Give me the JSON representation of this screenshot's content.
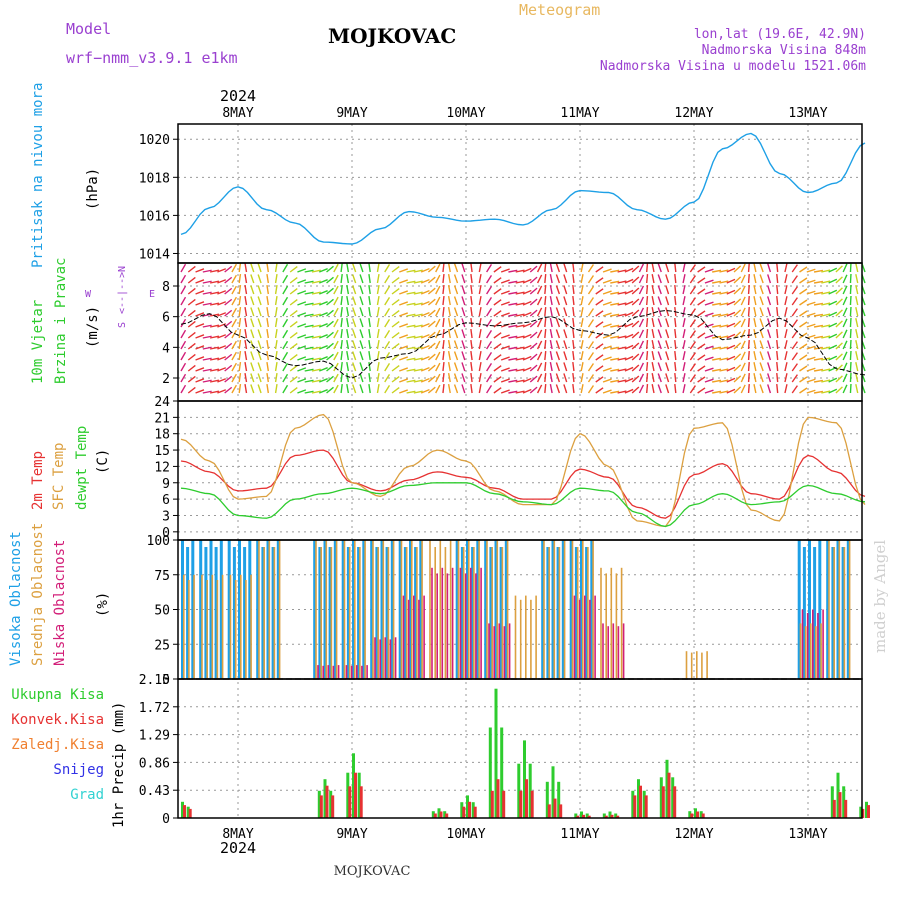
{
  "header": {
    "model_label": "Model",
    "model_value": "wrf−nmm_v3.9.1  e1km",
    "station": "MOJKOVAC",
    "product": "Meteogram",
    "coords": "lon,lat (19.6E, 42.9N)",
    "elevation": "Nadmorska Visina 848m",
    "model_elevation": "Nadmorska Visina u modelu 1521.06m"
  },
  "footer": {
    "station": "MOJKOVAC",
    "credit": "made by Angel"
  },
  "colors": {
    "pressure": "#1ea0e6",
    "t2m": "#e63232",
    "tsfc": "#dca040",
    "tdew": "#2ecc2e",
    "high": "#1ea0e6",
    "mid": "#dca040",
    "low": "#d21e78",
    "total": "#2ecc2e",
    "conv": "#e63232",
    "frozen": "#f08030",
    "snow": "#3232e6",
    "graupel": "#32d2d2",
    "purple": "#9a40d0",
    "title_orange": "#e8b860"
  },
  "chart_data": [
    {
      "type": "line",
      "title": "Pritisak na nivou mora",
      "ylabel": "(hPa)",
      "xlabel": "",
      "x_ticks": [
        "8MAY",
        "9MAY",
        "10MAY",
        "11MAY",
        "12MAY",
        "13MAY"
      ],
      "year": "2024",
      "ylim": [
        1013.5,
        1020.8
      ],
      "y_ticks": [
        "1014",
        "1016",
        "1018",
        "1020"
      ],
      "grid": true,
      "x": [
        0.0,
        0.25,
        0.5,
        0.75,
        1.0,
        1.25,
        1.5,
        1.75,
        2.0,
        2.25,
        2.5,
        2.75,
        3.0,
        3.25,
        3.5,
        3.75,
        4.0,
        4.25,
        4.5,
        4.75,
        5.0,
        5.25,
        5.5,
        5.75,
        6.0
      ],
      "series": [
        {
          "name": "Pritisak na nivou mora",
          "values": [
            1015.0,
            1016.4,
            1017.5,
            1016.3,
            1015.6,
            1014.6,
            1014.5,
            1015.3,
            1016.2,
            1015.9,
            1015.7,
            1015.8,
            1015.5,
            1016.3,
            1017.3,
            1017.2,
            1016.3,
            1015.8,
            1016.7,
            1019.5,
            1020.3,
            1018.2,
            1017.2,
            1017.7,
            1019.8
          ]
        }
      ]
    },
    {
      "type": "line",
      "title": "10m Vjetar Brzina i Pravac",
      "ylabel": "(m/s)",
      "direction_legend": [
        "N",
        "<--|-->",
        "W",
        "E",
        "S"
      ],
      "ylim": [
        0.5,
        9.5
      ],
      "y_ticks": [
        "2",
        "4",
        "6",
        "8"
      ],
      "grid": true,
      "x": [
        0.0,
        0.25,
        0.5,
        0.75,
        1.0,
        1.25,
        1.5,
        1.75,
        2.0,
        2.25,
        2.5,
        2.75,
        3.0,
        3.25,
        3.5,
        3.75,
        4.0,
        4.25,
        4.5,
        4.75,
        5.0,
        5.25,
        5.5,
        5.75,
        6.0
      ],
      "series": [
        {
          "name": "10m Vjetar",
          "values": [
            5.5,
            6.2,
            4.8,
            3.5,
            2.8,
            3.1,
            2.0,
            3.3,
            3.6,
            4.8,
            5.6,
            5.4,
            5.6,
            6.0,
            5.1,
            4.8,
            6.0,
            6.4,
            6.1,
            4.5,
            4.8,
            5.9,
            4.6,
            2.6,
            2.2
          ]
        }
      ]
    },
    {
      "type": "line",
      "title": "2m Temp / SFC Temp / dewpt Temp",
      "ylabel": "(C)",
      "ylim": [
        -1.5,
        24
      ],
      "y_ticks": [
        "0",
        "3",
        "6",
        "9",
        "12",
        "15",
        "18",
        "21",
        "24"
      ],
      "grid": true,
      "x": [
        0.0,
        0.25,
        0.5,
        0.75,
        1.0,
        1.25,
        1.5,
        1.75,
        2.0,
        2.25,
        2.5,
        2.75,
        3.0,
        3.25,
        3.5,
        3.75,
        4.0,
        4.25,
        4.5,
        4.75,
        5.0,
        5.25,
        5.5,
        5.75,
        6.0
      ],
      "series": [
        {
          "name": "2m Temp",
          "values": [
            13.0,
            11.0,
            7.5,
            8.0,
            14.0,
            15.0,
            9.0,
            7.5,
            9.5,
            11.0,
            10.0,
            8.0,
            6.0,
            6.0,
            11.5,
            10.0,
            4.5,
            2.5,
            10.5,
            12.5,
            7.0,
            6.0,
            14.0,
            11.0,
            6.5
          ]
        },
        {
          "name": "SFC Temp",
          "values": [
            17.0,
            13.0,
            6.0,
            6.5,
            19.0,
            21.5,
            9.0,
            6.5,
            12.0,
            15.0,
            13.0,
            7.5,
            5.0,
            5.0,
            18.0,
            12.0,
            2.0,
            1.0,
            19.0,
            20.0,
            4.0,
            2.0,
            21.0,
            20.0,
            5.0
          ]
        },
        {
          "name": "dewpt Temp",
          "values": [
            8.0,
            7.0,
            3.0,
            2.5,
            6.0,
            7.0,
            8.0,
            7.0,
            8.5,
            9.0,
            9.0,
            7.0,
            5.5,
            5.0,
            8.0,
            7.5,
            3.5,
            1.0,
            5.0,
            7.0,
            5.0,
            5.5,
            8.5,
            7.0,
            5.5
          ]
        }
      ]
    },
    {
      "type": "bar",
      "title": "Visoka Oblacnost / Srednja Oblacnost / Niska Oblacnost",
      "ylabel": "(%)",
      "ylim": [
        0,
        100
      ],
      "y_ticks": [
        "0",
        "25",
        "50",
        "75",
        "100"
      ],
      "grid": true,
      "x": [
        0.0,
        0.25,
        0.5,
        0.75,
        1.0,
        1.25,
        1.5,
        1.75,
        2.0,
        2.25,
        2.5,
        2.75,
        3.0,
        3.25,
        3.5,
        3.75,
        4.0,
        4.25,
        4.5,
        4.75,
        5.0,
        5.25,
        5.5,
        5.75,
        6.0
      ],
      "series": [
        {
          "name": "Visoka Oblacnost",
          "values": [
            100,
            100,
            100,
            100,
            0,
            100,
            100,
            100,
            100,
            0,
            100,
            100,
            0,
            100,
            100,
            0,
            0,
            0,
            0,
            0,
            0,
            0,
            100,
            100,
            0
          ]
        },
        {
          "name": "Srednja Oblacnost",
          "values": [
            75,
            75,
            75,
            100,
            0,
            100,
            100,
            100,
            100,
            100,
            100,
            100,
            60,
            100,
            100,
            80,
            0,
            0,
            20,
            0,
            0,
            0,
            40,
            100,
            0
          ]
        },
        {
          "name": "Niska Oblacnost",
          "values": [
            0,
            0,
            0,
            0,
            0,
            10,
            10,
            30,
            60,
            80,
            80,
            40,
            0,
            0,
            60,
            40,
            0,
            0,
            0,
            0,
            0,
            0,
            50,
            0,
            0
          ]
        }
      ]
    },
    {
      "type": "bar",
      "title": "Ukupna Kisa / Konvek.Kisa / Zaledj.Kisa / Snijeg / Grad",
      "ylabel": "1hr Precip (mm)",
      "ylim": [
        0,
        2.15
      ],
      "y_ticks": [
        "0",
        "0.43",
        "0.86",
        "1.29",
        "1.72",
        "2.15"
      ],
      "grid": true,
      "x": [
        0.0,
        0.25,
        0.5,
        0.75,
        1.0,
        1.25,
        1.5,
        1.75,
        2.0,
        2.25,
        2.5,
        2.75,
        3.0,
        3.25,
        3.5,
        3.75,
        4.0,
        4.25,
        4.5,
        4.75,
        5.0,
        5.25,
        5.5,
        5.75,
        6.0
      ],
      "series": [
        {
          "name": "Ukupna Kisa",
          "values": [
            0.25,
            0,
            0,
            0,
            0,
            0.6,
            1.0,
            0,
            0,
            0.15,
            0.35,
            2.0,
            1.2,
            0.8,
            0.1,
            0.1,
            0.6,
            0.9,
            0.15,
            0,
            0,
            0,
            0,
            0.7,
            0.25
          ]
        },
        {
          "name": "Konvek.Kisa",
          "values": [
            0.2,
            0,
            0,
            0,
            0,
            0.5,
            0.7,
            0,
            0,
            0.1,
            0.25,
            0.6,
            0.6,
            0.3,
            0.05,
            0.05,
            0.5,
            0.7,
            0.1,
            0,
            0,
            0,
            0,
            0.4,
            0.2
          ]
        }
      ]
    }
  ],
  "legends": {
    "pressure": [
      "Pritisak na nivou mora"
    ],
    "wind": [
      "10m Vjetar",
      "Brzina i Pravac"
    ],
    "temp": [
      "2m Temp",
      "SFC Temp",
      "dewpt Temp"
    ],
    "cloud": [
      "Visoka Oblacnost",
      "Srednja Oblacnost",
      "Niska Oblacnost"
    ],
    "precip": [
      "Ukupna Kisa",
      "Konvek.Kisa",
      "Zaledj.Kisa",
      "Snijeg",
      "Grad"
    ]
  }
}
